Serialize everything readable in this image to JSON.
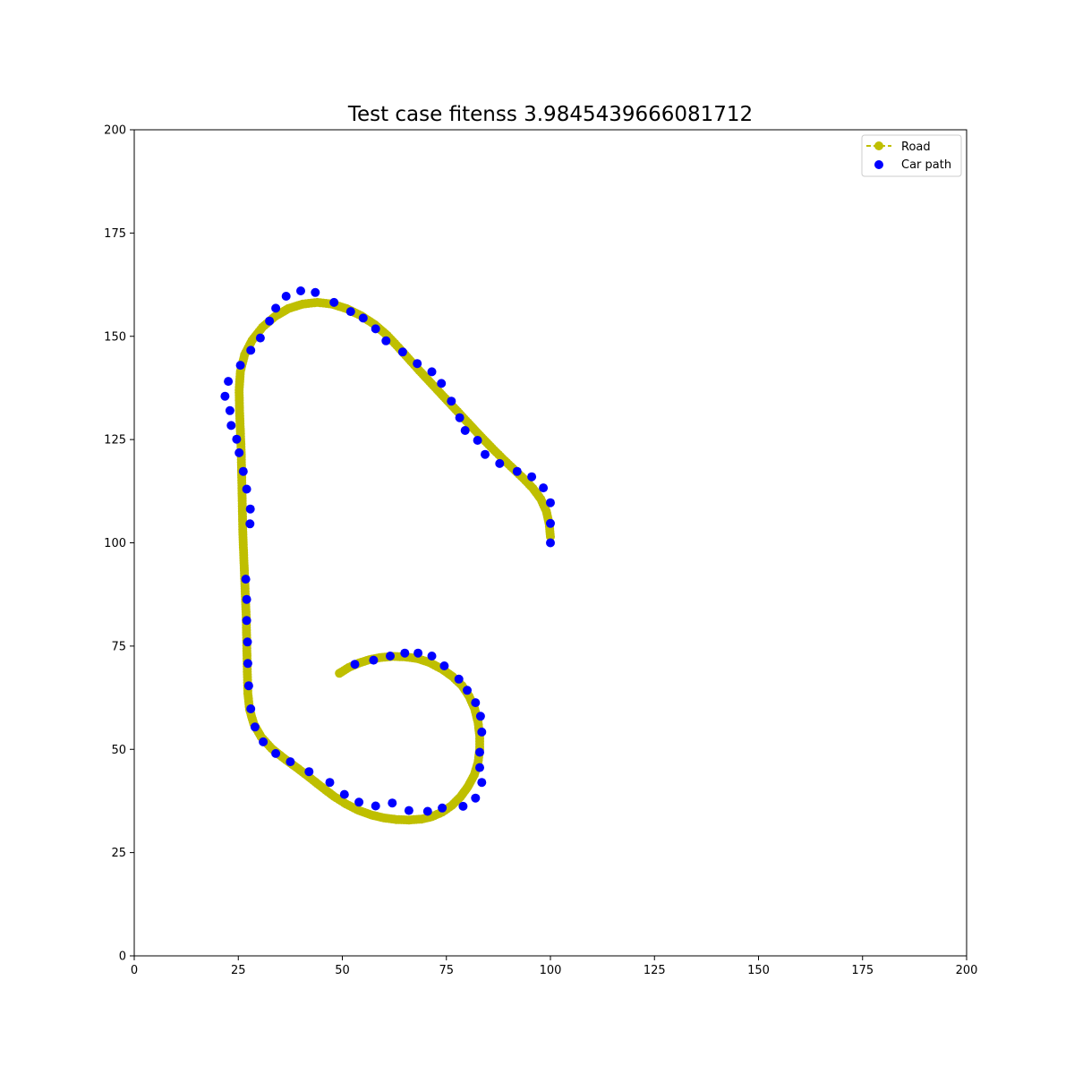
{
  "chart_data": {
    "type": "scatter",
    "title": "Test case fitenss 3.9845439666081712",
    "xlabel": "",
    "ylabel": "",
    "xlim": [
      0,
      200
    ],
    "ylim": [
      0,
      200
    ],
    "xticks": [
      0,
      25,
      50,
      75,
      100,
      125,
      150,
      175,
      200
    ],
    "yticks": [
      0,
      25,
      50,
      75,
      100,
      125,
      150,
      175,
      200
    ],
    "grid": false,
    "legend_position": "top-right",
    "series": [
      {
        "name": "Road",
        "style": "dashed line with circle markers",
        "color": "#bfbf00",
        "points": [
          [
            49.3,
            68.4
          ],
          [
            51.5,
            69.8
          ],
          [
            54.0,
            70.9
          ],
          [
            56.5,
            71.7
          ],
          [
            59.0,
            72.2
          ],
          [
            62.0,
            72.5
          ],
          [
            65.0,
            72.4
          ],
          [
            68.0,
            72.0
          ],
          [
            71.0,
            71.0
          ],
          [
            74.0,
            69.4
          ],
          [
            76.5,
            67.6
          ],
          [
            78.8,
            65.4
          ],
          [
            80.5,
            62.8
          ],
          [
            81.8,
            59.8
          ],
          [
            82.6,
            56.6
          ],
          [
            83.0,
            53.3
          ],
          [
            83.0,
            50.0
          ],
          [
            82.6,
            46.8
          ],
          [
            81.7,
            43.8
          ],
          [
            80.2,
            41.0
          ],
          [
            78.4,
            38.5
          ],
          [
            76.3,
            36.4
          ],
          [
            74.0,
            34.8
          ],
          [
            71.5,
            33.7
          ],
          [
            69.0,
            33.1
          ],
          [
            66.0,
            32.9
          ],
          [
            63.0,
            33.0
          ],
          [
            60.0,
            33.4
          ],
          [
            57.0,
            34.1
          ],
          [
            54.0,
            35.2
          ],
          [
            51.0,
            36.7
          ],
          [
            48.0,
            38.6
          ],
          [
            45.0,
            40.9
          ],
          [
            42.0,
            43.3
          ],
          [
            39.0,
            45.6
          ],
          [
            36.0,
            47.8
          ],
          [
            33.0,
            50.2
          ],
          [
            30.5,
            53.0
          ],
          [
            28.7,
            56.2
          ],
          [
            27.7,
            59.7
          ],
          [
            27.3,
            63.5
          ],
          [
            27.2,
            67.5
          ],
          [
            27.1,
            72.0
          ],
          [
            27.0,
            77.0
          ],
          [
            26.9,
            82.0
          ],
          [
            26.7,
            87.0
          ],
          [
            26.5,
            92.0
          ],
          [
            26.3,
            97.0
          ],
          [
            26.1,
            102.0
          ],
          [
            26.0,
            107.0
          ],
          [
            25.9,
            112.0
          ],
          [
            25.8,
            117.0
          ],
          [
            25.7,
            122.0
          ],
          [
            25.5,
            127.0
          ],
          [
            25.3,
            132.0
          ],
          [
            25.2,
            137.0
          ],
          [
            25.5,
            141.5
          ],
          [
            26.5,
            145.5
          ],
          [
            28.3,
            149.0
          ],
          [
            30.8,
            152.2
          ],
          [
            33.8,
            154.8
          ],
          [
            37.0,
            156.7
          ],
          [
            40.5,
            157.8
          ],
          [
            44.0,
            158.2
          ],
          [
            47.5,
            157.8
          ],
          [
            51.0,
            156.7
          ],
          [
            54.5,
            155.0
          ],
          [
            57.8,
            152.8
          ],
          [
            60.8,
            150.2
          ],
          [
            63.5,
            147.3
          ],
          [
            66.0,
            144.5
          ],
          [
            68.5,
            141.7
          ],
          [
            71.0,
            139.0
          ],
          [
            73.5,
            136.3
          ],
          [
            76.0,
            133.6
          ],
          [
            78.5,
            130.9
          ],
          [
            81.0,
            128.2
          ],
          [
            83.5,
            125.5
          ],
          [
            86.0,
            122.9
          ],
          [
            88.5,
            120.4
          ],
          [
            91.0,
            118.0
          ],
          [
            93.5,
            115.6
          ],
          [
            95.8,
            113.2
          ],
          [
            97.7,
            110.6
          ],
          [
            99.0,
            107.7
          ],
          [
            99.7,
            104.6
          ],
          [
            100.0,
            101.5
          ]
        ]
      },
      {
        "name": "Car path",
        "style": "circle markers",
        "color": "#0000ff",
        "points": [
          [
            53.0,
            70.6
          ],
          [
            57.5,
            71.6
          ],
          [
            61.5,
            72.6
          ],
          [
            65.0,
            73.3
          ],
          [
            68.2,
            73.3
          ],
          [
            71.5,
            72.6
          ],
          [
            74.5,
            70.2
          ],
          [
            78.0,
            67.0
          ],
          [
            80.0,
            64.3
          ],
          [
            82.0,
            61.3
          ],
          [
            83.2,
            58.0
          ],
          [
            83.5,
            54.2
          ],
          [
            83.0,
            49.3
          ],
          [
            83.0,
            45.6
          ],
          [
            83.5,
            42.0
          ],
          [
            82.0,
            38.2
          ],
          [
            79.0,
            36.2
          ],
          [
            74.0,
            35.8
          ],
          [
            70.5,
            35.0
          ],
          [
            66.0,
            35.2
          ],
          [
            62.0,
            37.0
          ],
          [
            58.0,
            36.3
          ],
          [
            54.0,
            37.2
          ],
          [
            50.5,
            39.1
          ],
          [
            47.0,
            42.0
          ],
          [
            42.0,
            44.6
          ],
          [
            37.5,
            47.0
          ],
          [
            34.0,
            49.0
          ],
          [
            31.0,
            51.8
          ],
          [
            29.0,
            55.4
          ],
          [
            28.0,
            59.8
          ],
          [
            27.5,
            65.4
          ],
          [
            27.3,
            70.8
          ],
          [
            27.2,
            76.0
          ],
          [
            27.0,
            81.2
          ],
          [
            27.0,
            86.3
          ],
          [
            26.8,
            91.2
          ],
          [
            27.8,
            104.6
          ],
          [
            27.9,
            108.2
          ],
          [
            27.0,
            113.0
          ],
          [
            26.2,
            117.3
          ],
          [
            25.2,
            121.8
          ],
          [
            24.6,
            125.1
          ],
          [
            23.3,
            128.4
          ],
          [
            23.0,
            132.0
          ],
          [
            21.8,
            135.5
          ],
          [
            22.6,
            139.1
          ],
          [
            25.5,
            143.0
          ],
          [
            28.0,
            146.6
          ],
          [
            30.3,
            149.6
          ],
          [
            32.5,
            153.7
          ],
          [
            34.0,
            156.8
          ],
          [
            36.5,
            159.7
          ],
          [
            40.0,
            161.0
          ],
          [
            43.5,
            160.6
          ],
          [
            48.0,
            158.2
          ],
          [
            52.0,
            156.0
          ],
          [
            55.0,
            154.4
          ],
          [
            58.0,
            151.8
          ],
          [
            60.5,
            148.9
          ],
          [
            64.5,
            146.2
          ],
          [
            68.0,
            143.4
          ],
          [
            71.5,
            141.4
          ],
          [
            73.8,
            138.6
          ],
          [
            76.2,
            134.3
          ],
          [
            78.2,
            130.3
          ],
          [
            79.5,
            127.2
          ],
          [
            82.5,
            124.8
          ],
          [
            84.3,
            121.4
          ],
          [
            87.8,
            119.2
          ],
          [
            92.0,
            117.3
          ],
          [
            95.5,
            116.0
          ],
          [
            98.3,
            113.3
          ],
          [
            100.0,
            109.7
          ],
          [
            100.0,
            104.7
          ],
          [
            100.0,
            100.0
          ]
        ]
      }
    ]
  }
}
